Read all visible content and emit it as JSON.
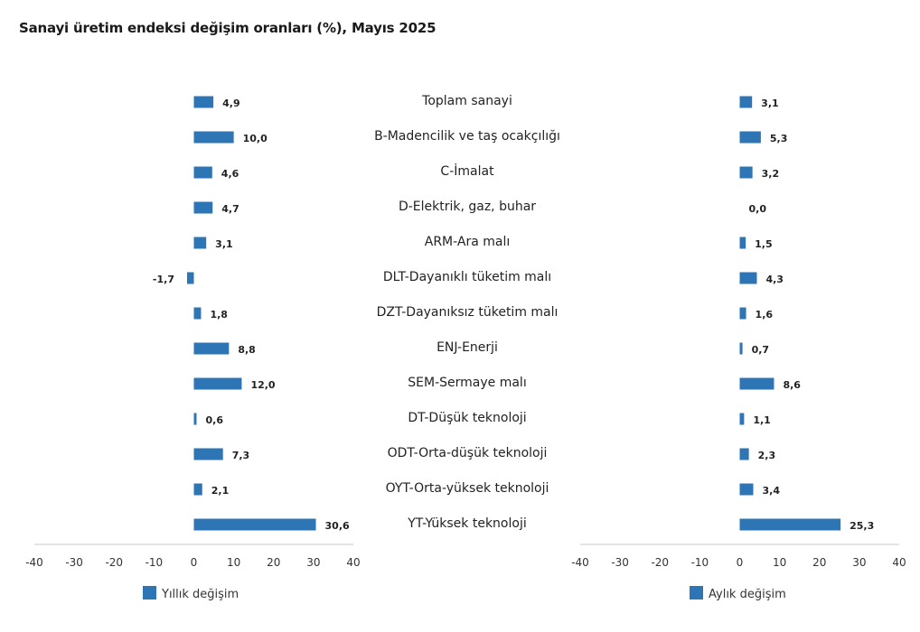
{
  "title": "Sanayi üretim endeksi değişim oranları (%), Mayıs 2025",
  "colors": {
    "bar": "#2e75b6",
    "axis": "#c8c8c8"
  },
  "chart_data": {
    "type": "bar",
    "orientation": "horizontal",
    "categories": [
      "Toplam sanayi",
      "B-Madencilik ve taş ocakçılığı",
      "C-İmalat",
      "D-Elektrik, gaz, buhar",
      "ARM-Ara malı",
      "DLT-Dayanıklı tüketim malı",
      "DZT-Dayanıksız tüketim malı",
      "ENJ-Enerji",
      "SEM-Sermaye malı",
      "DT-Düşük teknoloji",
      "ODT-Orta-düşük teknoloji",
      "OYT-Orta-yüksek teknoloji",
      "YT-Yüksek teknoloji"
    ],
    "series": [
      {
        "name": "Yıllık değişim",
        "values": [
          4.9,
          10.0,
          4.6,
          4.7,
          3.1,
          -1.7,
          1.8,
          8.8,
          12.0,
          0.6,
          7.3,
          2.1,
          30.6
        ],
        "labels": [
          "4,9",
          "10,0",
          "4,6",
          "4,7",
          "3,1",
          "-1,7",
          "1,8",
          "8,8",
          "12,0",
          "0,6",
          "7,3",
          "2,1",
          "30,6"
        ]
      },
      {
        "name": "Aylık değişim",
        "values": [
          3.1,
          5.3,
          3.2,
          0.0,
          1.5,
          4.3,
          1.6,
          0.7,
          8.6,
          1.1,
          2.3,
          3.4,
          25.3
        ],
        "labels": [
          "3,1",
          "5,3",
          "3,2",
          "0,0",
          "1,5",
          "4,3",
          "1,6",
          "0,7",
          "8,6",
          "1,1",
          "2,3",
          "3,4",
          "25,3"
        ]
      }
    ],
    "xlim": [
      -40,
      40
    ],
    "xticks": [
      -40,
      -30,
      -20,
      -10,
      0,
      10,
      20,
      30,
      40
    ],
    "xtick_labels": [
      "-40",
      "-30",
      "-20",
      "-10",
      "0",
      "10",
      "20",
      "30",
      "40"
    ],
    "grid": false,
    "legend": "bottom-left"
  }
}
